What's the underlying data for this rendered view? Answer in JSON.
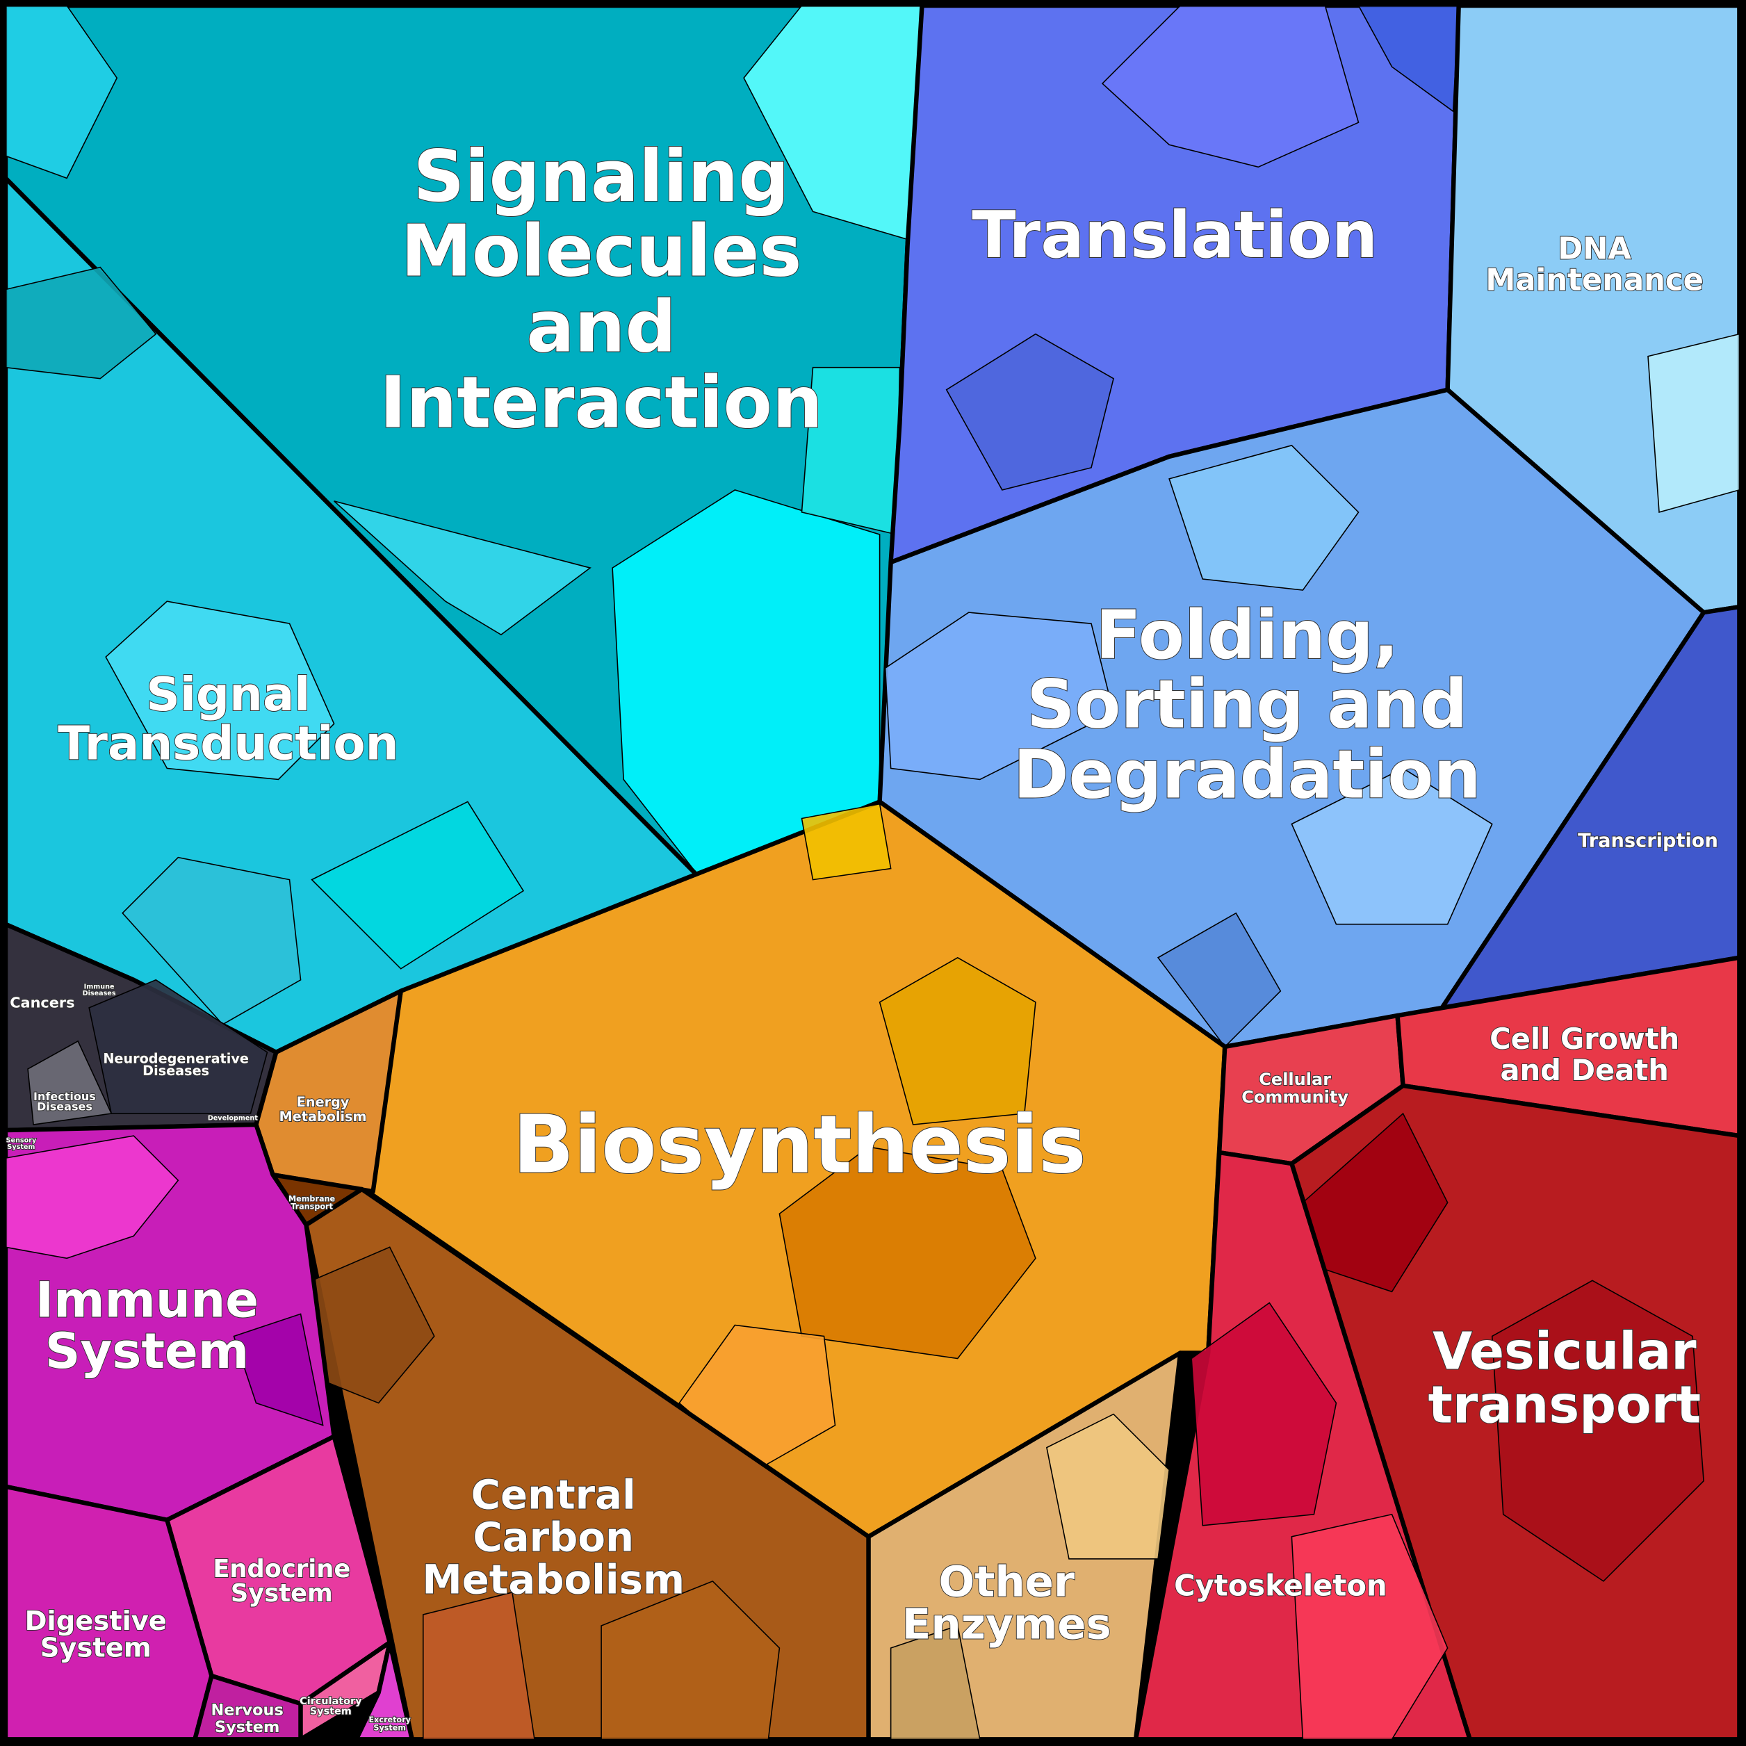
{
  "labels": [
    [
      "Signaling",
      "Molecules",
      "and",
      "Interaction"
    ],
    [
      "Translation"
    ],
    [
      "DNA",
      "Maintenance"
    ],
    [
      "Folding,",
      "Sorting and",
      "Degradation"
    ],
    [
      "Transcription"
    ],
    [
      "Signal",
      "Transduction"
    ],
    [
      "Cancers"
    ],
    [
      "Immune",
      "Diseases"
    ],
    [
      "Neurodegenerative",
      "Diseases"
    ],
    [
      "Infectious",
      "Diseases"
    ],
    [
      "Biosynthesis"
    ],
    [
      "Energy",
      "Metabolism"
    ],
    [
      "Membrane",
      "Transport"
    ],
    [
      "Central",
      "Carbon",
      "Metabolism"
    ],
    [
      "Other",
      "Enzymes"
    ],
    [
      "Cellular",
      "Community"
    ],
    [
      "Cell Growth",
      "and Death"
    ],
    [
      "Vesicular",
      "transport"
    ],
    [
      "Cytoskeleton"
    ],
    [
      "Immune",
      "System"
    ],
    [
      "Endocrine",
      "System"
    ],
    [
      "Digestive",
      "System"
    ],
    [
      "Nervous",
      "System"
    ],
    [
      "Circulatory",
      "System"
    ],
    [
      "Excretory",
      "System"
    ],
    [
      "Development"
    ],
    [
      "Sensory",
      "System"
    ]
  ]
}
